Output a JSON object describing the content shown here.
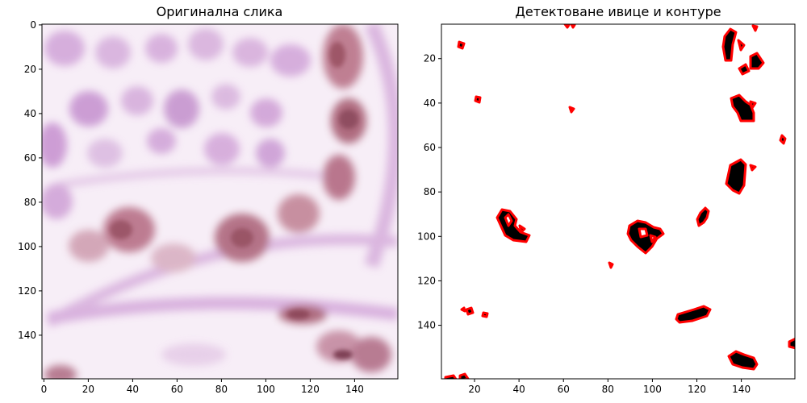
{
  "panels": [
    {
      "title": "Оригинална слика",
      "x_ticks": [
        "0",
        "20",
        "40",
        "60",
        "80",
        "100",
        "120",
        "140"
      ],
      "y_ticks": [
        "0",
        "20",
        "40",
        "60",
        "80",
        "100",
        "120",
        "140"
      ]
    },
    {
      "title": "Детектоване ивице и контуре",
      "x_ticks": [
        "20",
        "40",
        "60",
        "80",
        "100",
        "120",
        "140"
      ],
      "y_ticks": [
        "20",
        "40",
        "60",
        "80",
        "100",
        "120",
        "140"
      ]
    }
  ],
  "colors": {
    "tissue_background": "#f6ecf6",
    "cell_purple": "#c99ad3",
    "cell_brown": "#b06a7e",
    "contour": "#ff0000",
    "edge_fill": "#000000"
  }
}
